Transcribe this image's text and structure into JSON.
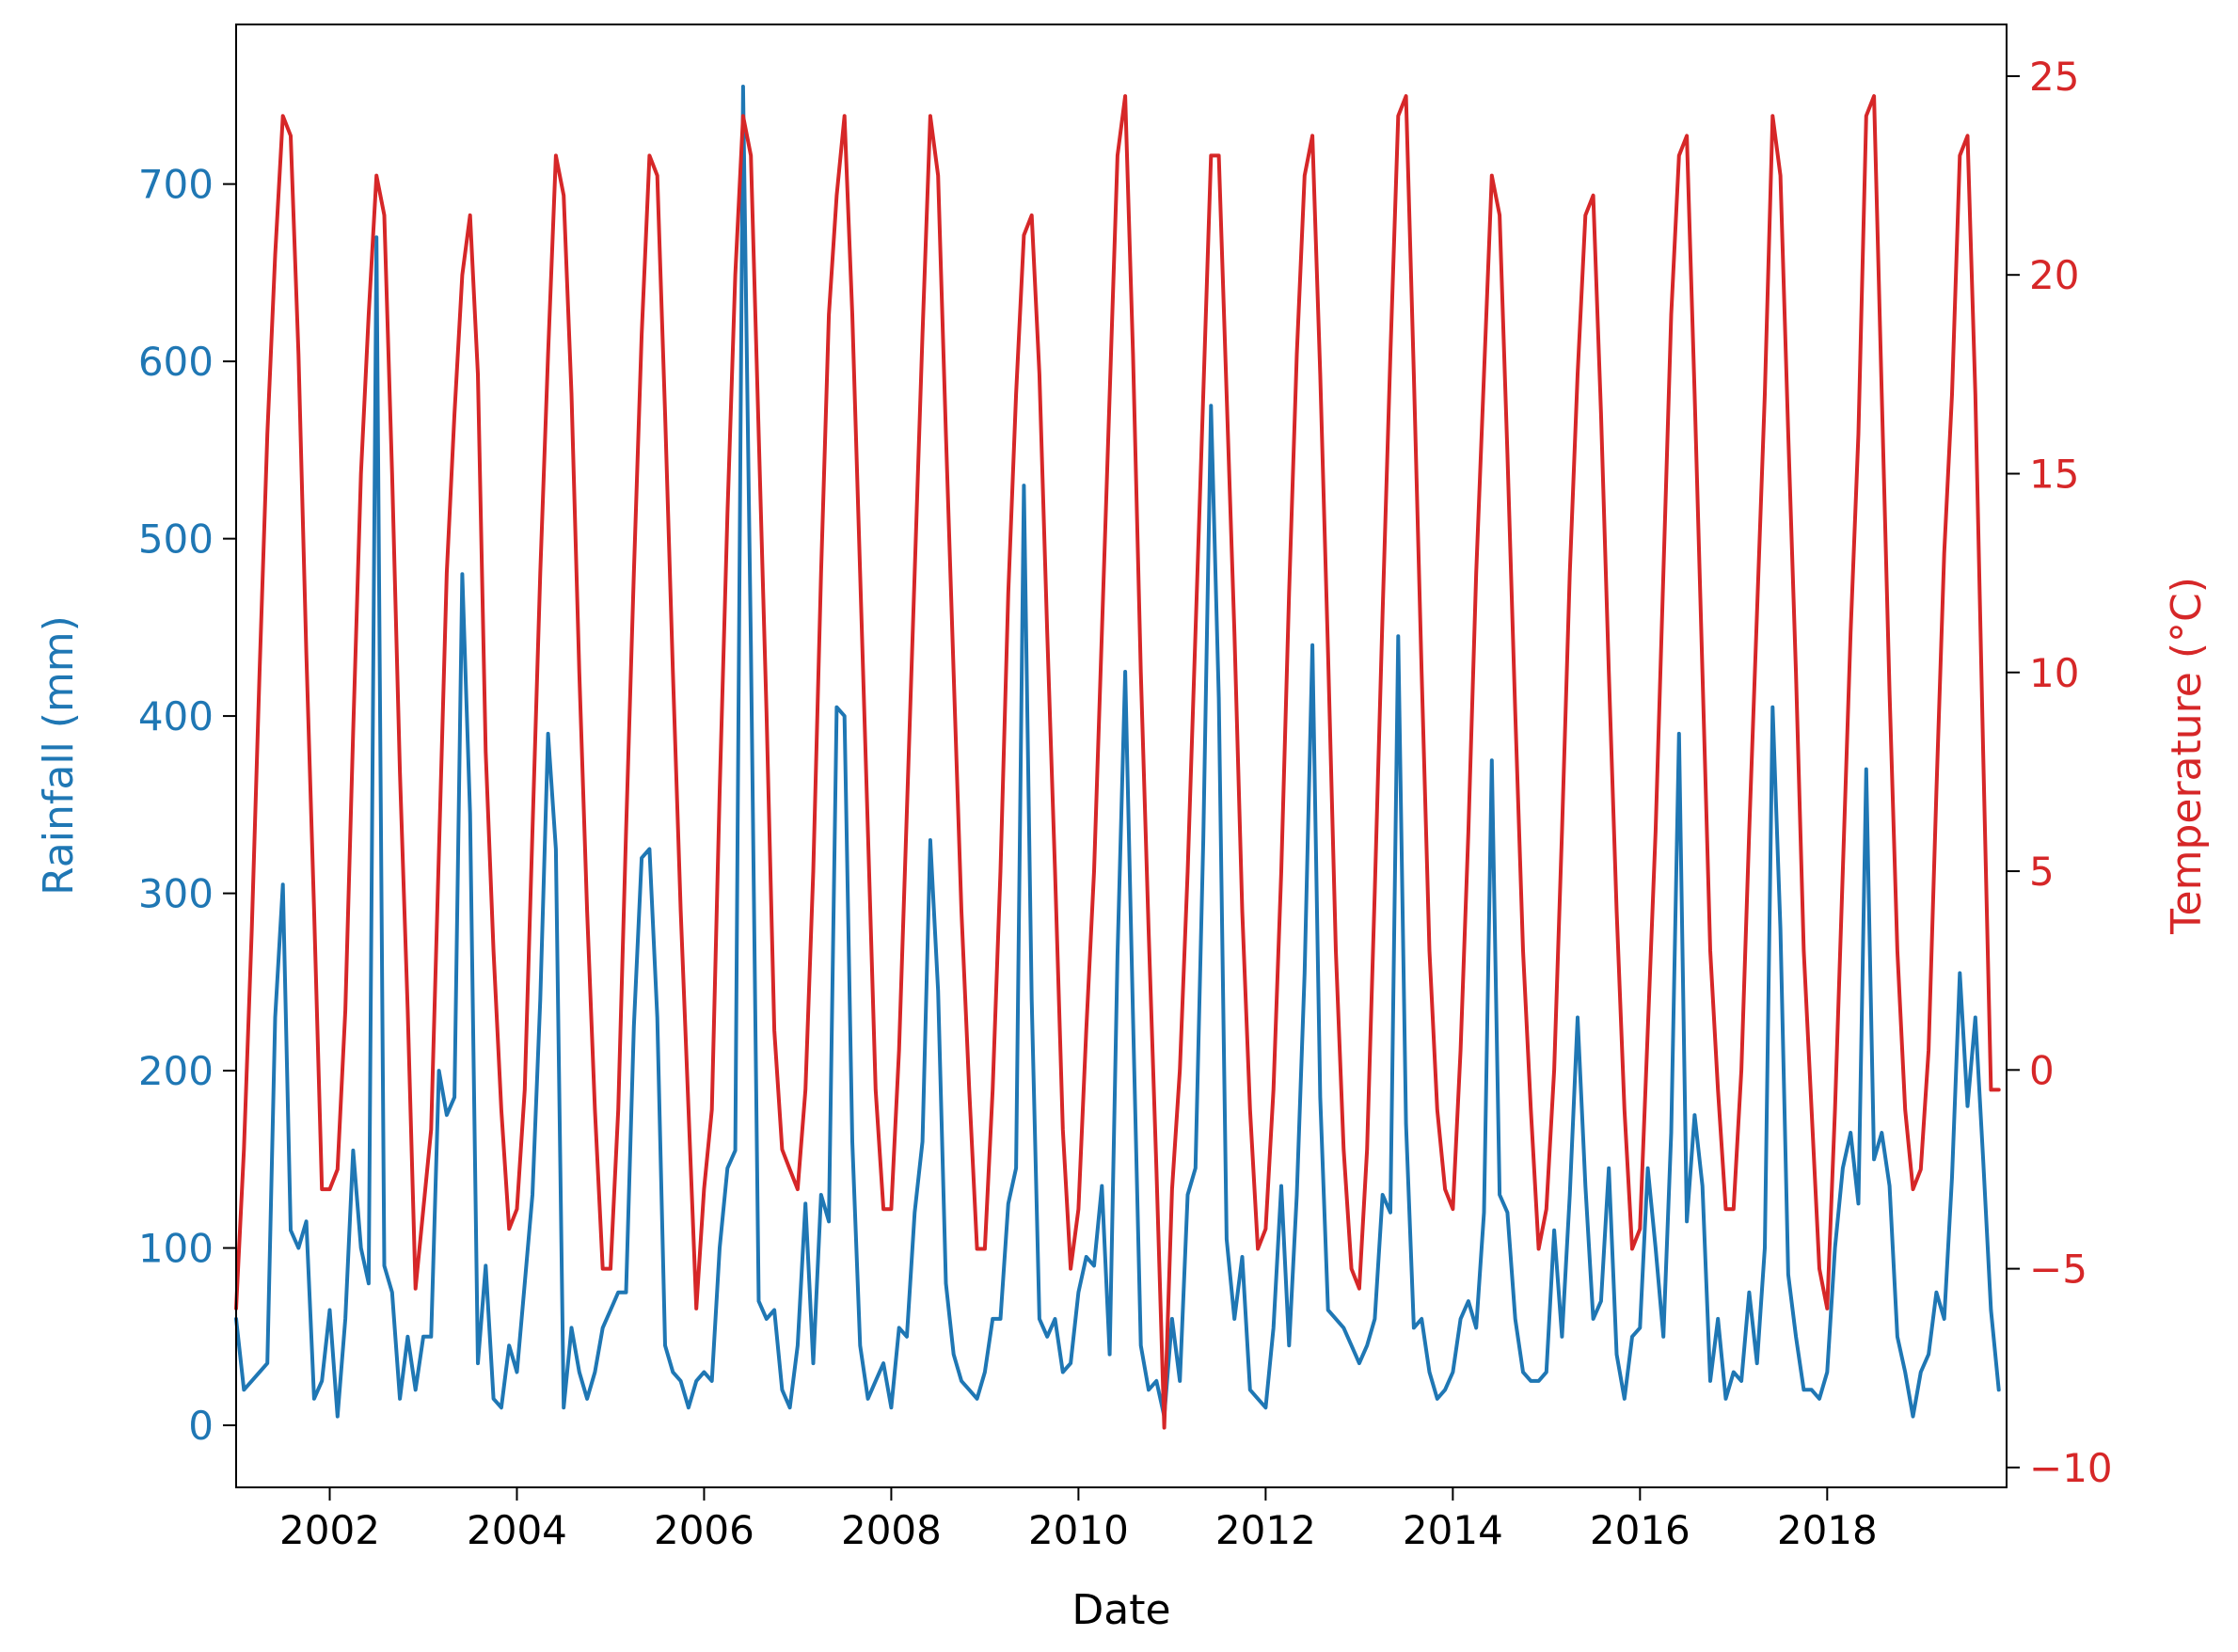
{
  "chart_data": {
    "type": "line",
    "xlabel": "Date",
    "xlim": [
      "2001-01",
      "2019-12"
    ],
    "x_ticks": [
      "2002",
      "2004",
      "2006",
      "2008",
      "2010",
      "2012",
      "2014",
      "2016",
      "2018"
    ],
    "grid": false,
    "legend": "none",
    "y_left": {
      "label": "Rainfall (mm)",
      "lim": [
        -35,
        790
      ],
      "ticks": [
        "0",
        "100",
        "200",
        "300",
        "400",
        "500",
        "600",
        "700"
      ],
      "color": "#1f77b4"
    },
    "y_right": {
      "label": "Temperature (°C)",
      "lim": [
        -10.5,
        26.3
      ],
      "ticks": [
        "−10",
        "−5",
        "0",
        "5",
        "10",
        "15",
        "20",
        "25"
      ],
      "color": "#d62728"
    },
    "series": [
      {
        "axis": "left",
        "color": "#1f77b4",
        "x_start": "2001-01",
        "x_step": "1 month",
        "values": [
          60,
          20,
          25,
          30,
          35,
          230,
          305,
          110,
          100,
          115,
          15,
          25,
          65,
          5,
          60,
          155,
          100,
          80,
          670,
          90,
          75,
          15,
          50,
          20,
          50,
          50,
          200,
          175,
          185,
          480,
          345,
          35,
          90,
          15,
          10,
          45,
          30,
          80,
          130,
          240,
          390,
          325,
          10,
          55,
          30,
          15,
          30,
          55,
          65,
          75,
          75,
          225,
          320,
          325,
          230,
          45,
          30,
          25,
          10,
          25,
          30,
          25,
          100,
          145,
          155,
          755,
          440,
          70,
          60,
          65,
          20,
          10,
          45,
          125,
          35,
          130,
          115,
          405,
          400,
          160,
          45,
          15,
          25,
          35,
          10,
          55,
          50,
          120,
          160,
          330,
          245,
          80,
          40,
          25,
          20,
          15,
          30,
          60,
          60,
          125,
          145,
          530,
          240,
          60,
          50,
          60,
          30,
          35,
          75,
          95,
          90,
          135,
          40,
          265,
          425,
          230,
          45,
          20,
          25,
          5,
          60,
          25,
          130,
          145,
          330,
          575,
          410,
          105,
          60,
          95,
          20,
          15,
          10,
          55,
          135,
          45,
          130,
          255,
          440,
          185,
          65,
          60,
          55,
          45,
          35,
          45,
          60,
          130,
          120,
          445,
          170,
          55,
          60,
          30,
          15,
          20,
          30,
          60,
          70,
          55,
          120,
          375,
          130,
          120,
          60,
          30,
          25,
          25,
          30,
          110,
          50,
          130,
          230,
          135,
          60,
          70,
          145,
          40,
          15,
          50,
          55,
          145,
          100,
          50,
          165,
          390,
          115,
          175,
          135,
          25,
          60,
          15,
          30,
          25,
          75,
          35,
          100,
          405,
          280,
          85,
          50,
          20,
          20,
          15,
          30,
          100,
          145,
          165,
          125,
          370,
          150,
          165,
          135,
          50,
          30,
          5,
          30,
          40,
          75,
          60,
          140,
          255,
          180,
          230,
          150,
          65,
          20
        ]
      },
      {
        "axis": "right",
        "color": "#d62728",
        "x_start": "2001-01",
        "x_step": "1 month",
        "values": [
          -6,
          -2,
          3.5,
          10,
          16,
          20.5,
          24,
          23.5,
          18,
          10.5,
          4,
          -3,
          -3,
          -2.5,
          1.5,
          8.5,
          15,
          19,
          22.5,
          21.5,
          15,
          7.5,
          1.5,
          -5.5,
          -3.5,
          -1.5,
          5.5,
          12.5,
          16.5,
          20,
          21.5,
          17.5,
          8,
          3,
          -1,
          -4,
          -3.5,
          -0.5,
          6,
          12.5,
          18,
          23,
          22,
          17,
          10,
          4,
          -1,
          -5,
          -5,
          -1,
          6,
          12.5,
          18.5,
          23,
          22.5,
          16.5,
          10,
          4,
          -1,
          -6,
          -3,
          -1,
          7,
          14,
          20,
          24,
          23,
          16,
          9,
          1,
          -2,
          -2.5,
          -3,
          -0.5,
          5,
          12.5,
          19,
          22,
          24,
          19,
          12.5,
          6,
          -0.5,
          -3.5,
          -3.5,
          0.5,
          6.5,
          12.5,
          18.5,
          24,
          22.5,
          16,
          10,
          4,
          -0.5,
          -4.5,
          -4.5,
          -0.5,
          5,
          12,
          17,
          21,
          21.5,
          17.5,
          11,
          5,
          -1.5,
          -5,
          -3.5,
          1,
          5,
          11,
          17,
          23,
          24.5,
          18,
          10,
          3.5,
          -2.5,
          -9,
          -3,
          0,
          5,
          11,
          17,
          23,
          23,
          17,
          11,
          4,
          -1,
          -4.5,
          -4,
          -0.5,
          5,
          12,
          18,
          22.5,
          23.5,
          17.5,
          10.5,
          3,
          -2,
          -5,
          -5.5,
          -2,
          4.5,
          11.5,
          18,
          24,
          24.5,
          17.5,
          10,
          3,
          -1,
          -3,
          -3.5,
          0.5,
          6,
          12.5,
          17.5,
          22.5,
          21.5,
          15.5,
          9,
          3,
          -1,
          -4.5,
          -3.5,
          0,
          6,
          12.5,
          17.5,
          21.5,
          22,
          16.5,
          10,
          4,
          -1,
          -4.5,
          -4,
          1,
          6,
          12.5,
          19,
          23,
          23.5,
          17,
          10,
          3,
          -0.5,
          -3.5,
          -3.5,
          0,
          6,
          11.5,
          17,
          24,
          22.5,
          16,
          10,
          3,
          -1,
          -5,
          -6,
          -1,
          5,
          11,
          16,
          24,
          24.5,
          17,
          9.5,
          3,
          -1,
          -3,
          -2.5,
          0.5,
          7,
          13,
          17,
          23,
          23.5,
          17,
          8,
          -0.5,
          -0.5
        ]
      }
    ]
  }
}
